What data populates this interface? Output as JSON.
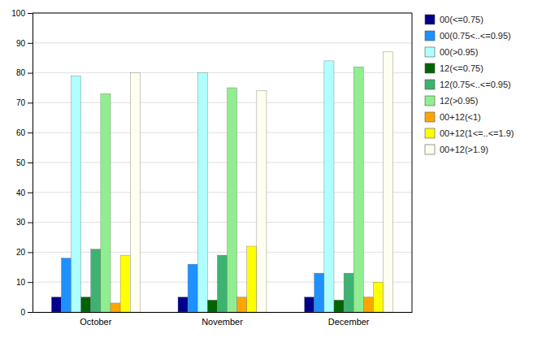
{
  "chart_data": {
    "type": "bar",
    "categories": [
      "October",
      "November",
      "December"
    ],
    "series": [
      {
        "name": "00(<=0.75)",
        "color": "#00008B",
        "values": [
          5,
          5,
          5
        ]
      },
      {
        "name": "00(0.75<..<=0.95)",
        "color": "#1E90FF",
        "values": [
          18,
          16,
          13
        ]
      },
      {
        "name": "00(>0.95)",
        "color": "#B0FFFF",
        "values": [
          79,
          80,
          84
        ]
      },
      {
        "name": "12(<=0.75)",
        "color": "#006400",
        "values": [
          5,
          4,
          4
        ]
      },
      {
        "name": "12(0.75<..<=0.95)",
        "color": "#3CB371",
        "values": [
          21,
          19,
          13
        ]
      },
      {
        "name": "12(>0.95)",
        "color": "#90EE90",
        "values": [
          73,
          75,
          82
        ]
      },
      {
        "name": "00+12(<1)",
        "color": "#FFA500",
        "values": [
          3,
          5,
          5
        ]
      },
      {
        "name": "00+12(1<=..<=1.9)",
        "color": "#FFFF00",
        "values": [
          19,
          22,
          10
        ]
      },
      {
        "name": "00+12(>1.9)",
        "color": "#FFFFF0",
        "values": [
          80,
          74,
          87
        ]
      }
    ],
    "ylim": [
      0,
      100
    ],
    "yticks": [
      0,
      10,
      20,
      30,
      40,
      50,
      60,
      70,
      80,
      90,
      100
    ],
    "grid": true,
    "legend": "right"
  }
}
